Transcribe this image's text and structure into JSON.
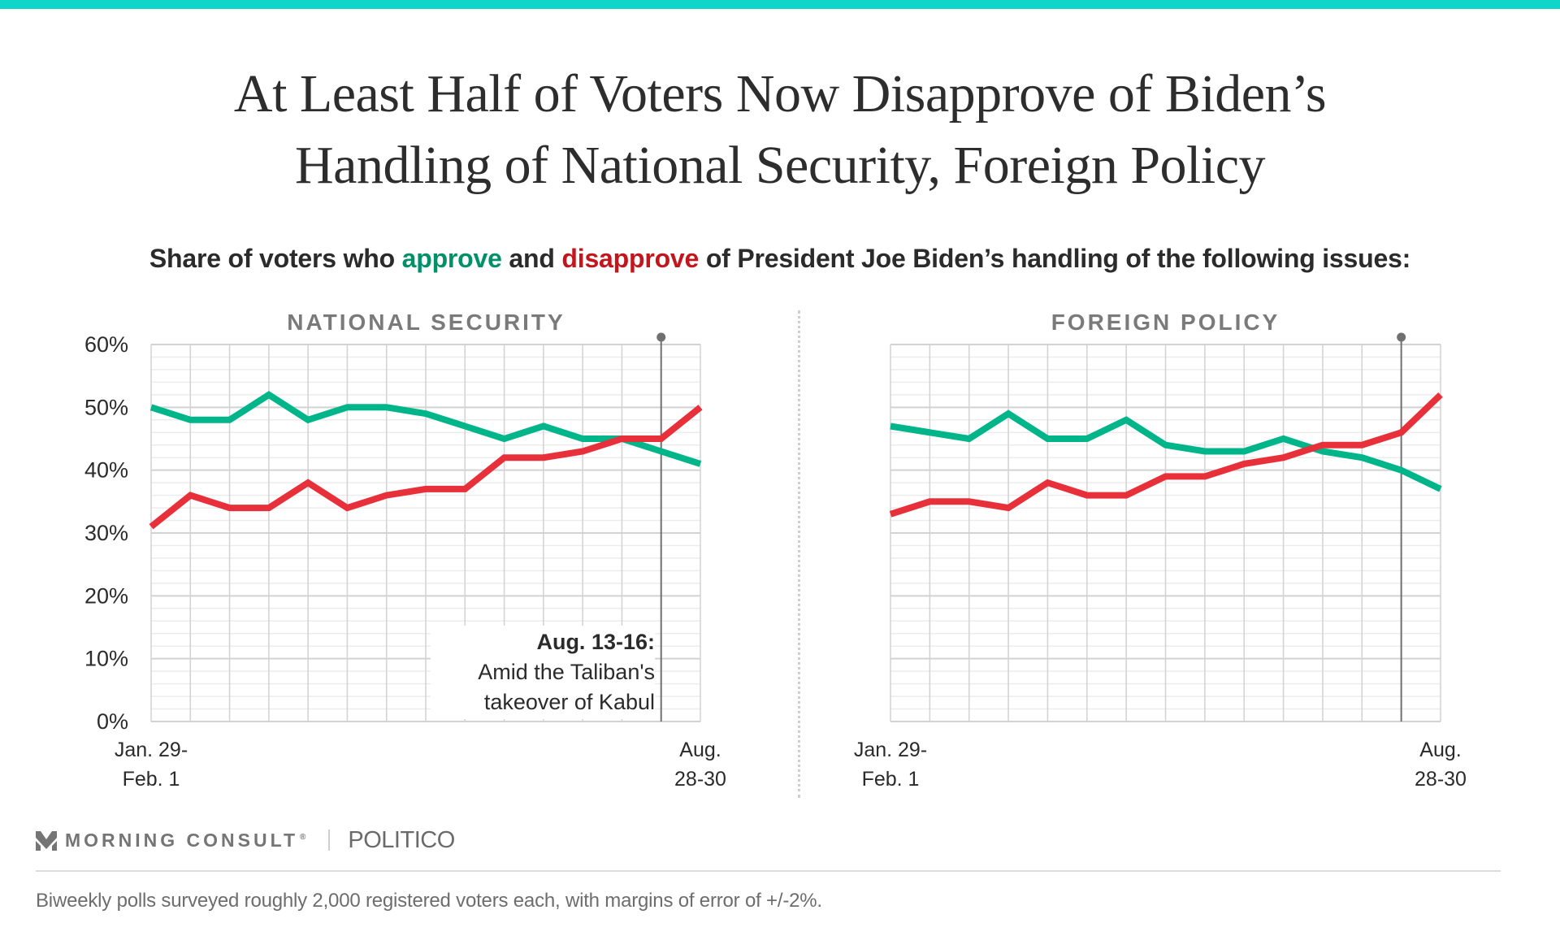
{
  "header": {
    "title_line1": "At Least Half of Voters Now Disapprove of Biden’s",
    "title_line2": "Handling of National Security, Foreign Policy"
  },
  "subtitle": {
    "part1": "Share of voters who ",
    "approve": "approve",
    "part2": " and ",
    "disapprove": "disapprove",
    "part3": " of President Joe Biden’s handling of the following issues:"
  },
  "colors": {
    "accent_bar": "#0fd6cb",
    "approve_line": "#00b589",
    "disapprove_line": "#e8303a",
    "approve_text": "#00906a",
    "disapprove_text": "#c4151c"
  },
  "annotation": {
    "head": "Aug. 13-16:",
    "line1": "Amid the Taliban's",
    "line2": "takeover of Kabul"
  },
  "x_labels": {
    "start_line1": "Jan. 29-",
    "start_line2": "Feb. 1",
    "end_line1": "Aug.",
    "end_line2": "28-30"
  },
  "footer": {
    "brand1": "MORNING CONSULT",
    "brand1_mark": "®",
    "brand2": "POLITICO",
    "note": "Biweekly polls surveyed roughly 2,000 registered voters each, with margins of error of +/-2%.",
    "logo_icon": "morning-consult-chevron-icon"
  },
  "chart_data": [
    {
      "type": "line",
      "title": "NATIONAL SECURITY",
      "xlabel": "",
      "ylabel": "",
      "ylim": [
        0,
        60
      ],
      "yticks": [
        "0%",
        "10%",
        "20%",
        "30%",
        "40%",
        "50%",
        "60%"
      ],
      "x_tick_labels": [
        "Jan. 29-Feb. 1",
        "Aug. 28-30"
      ],
      "n_points": 15,
      "grid": true,
      "reference_line": {
        "index": 13,
        "label": "Aug. 13-16: Amid the Taliban's takeover of Kabul"
      },
      "series": [
        {
          "name": "approve",
          "values": [
            50,
            48,
            48,
            52,
            48,
            50,
            50,
            49,
            47,
            45,
            47,
            45,
            45,
            43,
            41
          ]
        },
        {
          "name": "disapprove",
          "values": [
            31,
            36,
            34,
            34,
            38,
            34,
            36,
            37,
            37,
            42,
            42,
            43,
            45,
            45,
            50
          ]
        }
      ]
    },
    {
      "type": "line",
      "title": "FOREIGN POLICY",
      "xlabel": "",
      "ylabel": "",
      "ylim": [
        0,
        60
      ],
      "yticks": [],
      "x_tick_labels": [
        "Jan. 29-Feb. 1",
        "Aug. 28-30"
      ],
      "n_points": 15,
      "grid": true,
      "reference_line": {
        "index": 13,
        "label": ""
      },
      "series": [
        {
          "name": "approve",
          "values": [
            47,
            46,
            45,
            49,
            45,
            45,
            48,
            44,
            43,
            43,
            45,
            43,
            42,
            40,
            37
          ]
        },
        {
          "name": "disapprove",
          "values": [
            33,
            35,
            35,
            34,
            38,
            36,
            36,
            39,
            39,
            41,
            42,
            44,
            44,
            46,
            52
          ]
        }
      ]
    }
  ]
}
